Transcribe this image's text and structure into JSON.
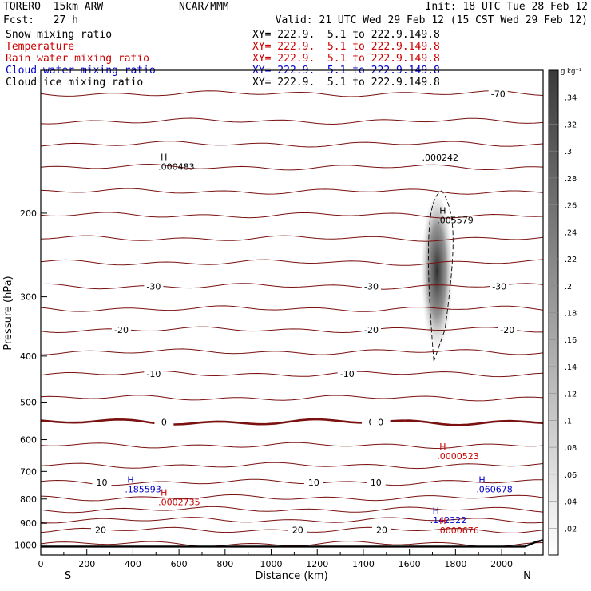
{
  "header": {
    "model": "TORERO  15km ARW",
    "org": "NCAR/MMM",
    "init": "Init: 18 UTC Tue 28 Feb 12",
    "fcst": "Fcst:   27 h",
    "valid": "Valid: 21 UTC Wed 29 Feb 12 (15 CST Wed 29 Feb 12)"
  },
  "fields": [
    {
      "name": "Snow mixing ratio",
      "xy": "XY= 222.9.  5.1 to 222.9.149.8",
      "color": "#000000"
    },
    {
      "name": "Temperature",
      "xy": "XY= 222.9.  5.1 to 222.9.149.8",
      "color": "#cc0000"
    },
    {
      "name": "Rain water mixing ratio",
      "xy": "XY= 222.9.  5.1 to 222.9.149.8",
      "color": "#cc0000"
    },
    {
      "name": "Cloud water mixing ratio",
      "xy": "XY= 222.9.  5.1 to 222.9.149.8",
      "color": "#0000cc"
    },
    {
      "name": "Cloud ice mixing ratio",
      "xy": "XY= 222.9.  5.1 to 222.9.149.8",
      "color": "#000000"
    }
  ],
  "chart_data": {
    "type": "contour",
    "xlabel": "Distance (km)",
    "ylabel": "Pressure (hPa)",
    "xlim": [
      0,
      2180
    ],
    "ylim": [
      1050,
      100
    ],
    "y_scale": "log",
    "x_ticks": [
      0,
      200,
      400,
      600,
      800,
      1000,
      1200,
      1400,
      1600,
      1800,
      2000
    ],
    "y_ticks": [
      200,
      300,
      400,
      500,
      600,
      700,
      800,
      900,
      1000
    ],
    "endpoint_left": "S",
    "endpoint_right": "N",
    "colorbar": {
      "unit": "g kg⁻¹",
      "ticks": [
        ".02",
        ".04",
        ".06",
        ".08",
        ".1",
        ".12",
        ".14",
        ".16",
        ".18",
        ".2",
        ".22",
        ".24",
        ".26",
        ".28",
        ".3",
        ".32",
        ".34"
      ],
      "values": [
        0.02,
        0.04,
        0.06,
        0.08,
        0.1,
        0.12,
        0.14,
        0.16,
        0.18,
        0.2,
        0.22,
        0.24,
        0.26,
        0.28,
        0.3,
        0.32,
        0.34
      ],
      "max": 0.36
    },
    "temperature_contours": [
      {
        "p": 112,
        "label": "-70",
        "label_x": [
          1985
        ]
      },
      {
        "p": 128
      },
      {
        "p": 143
      },
      {
        "p": 160
      },
      {
        "p": 180
      },
      {
        "p": 202
      },
      {
        "p": 226
      },
      {
        "p": 254
      },
      {
        "p": 285,
        "label": "-30",
        "label_x": [
          490,
          1435,
          1990
        ]
      },
      {
        "p": 318
      },
      {
        "p": 352,
        "label": "-20",
        "label_x": [
          350,
          1435,
          2025
        ]
      },
      {
        "p": 392
      },
      {
        "p": 436,
        "label": "-10",
        "label_x": [
          490,
          1330
        ]
      },
      {
        "p": 490
      },
      {
        "p": 551,
        "label": "0",
        "label_x": [
          535,
          1435,
          1475
        ],
        "bold": true
      },
      {
        "p": 617
      },
      {
        "p": 680
      },
      {
        "p": 738,
        "label": "10",
        "label_x": [
          265,
          1185,
          1455
        ]
      },
      {
        "p": 795
      },
      {
        "p": 842
      },
      {
        "p": 886
      },
      {
        "p": 930,
        "label": "20",
        "label_x": [
          260,
          1115,
          1480
        ]
      },
      {
        "p": 995
      }
    ],
    "ground_pressure": 1008,
    "snow_core": {
      "x_range": [
        1650,
        1790
      ],
      "p_top": 185,
      "p_bottom": 410,
      "peak_value": 0.36
    },
    "annotations": [
      {
        "field": "snow",
        "marker": "H",
        "value": ".000483",
        "x": 510,
        "p": 162
      },
      {
        "field": "cloud_ice",
        "marker": "",
        "value": ".000242",
        "x": 1655,
        "p": 155
      },
      {
        "field": "snow",
        "marker": "H",
        "value": ".005579",
        "x": 1720,
        "p": 210
      },
      {
        "field": "rain",
        "marker": "H",
        "value": ".0000523",
        "x": 1720,
        "p": 660
      },
      {
        "field": "cloud_water",
        "marker": "H",
        "value": ".185593",
        "x": 365,
        "p": 775
      },
      {
        "field": "cloud_water",
        "marker": "H",
        "value": ".060678",
        "x": 1890,
        "p": 775
      },
      {
        "field": "rain",
        "marker": "H",
        "value": ".0002735",
        "x": 510,
        "p": 825
      },
      {
        "field": "cloud_water",
        "marker": "H",
        "value": ".142322",
        "x": 1690,
        "p": 900
      },
      {
        "field": "rain",
        "marker": "H",
        "value": ".0000676",
        "x": 1720,
        "p": 945
      }
    ]
  }
}
